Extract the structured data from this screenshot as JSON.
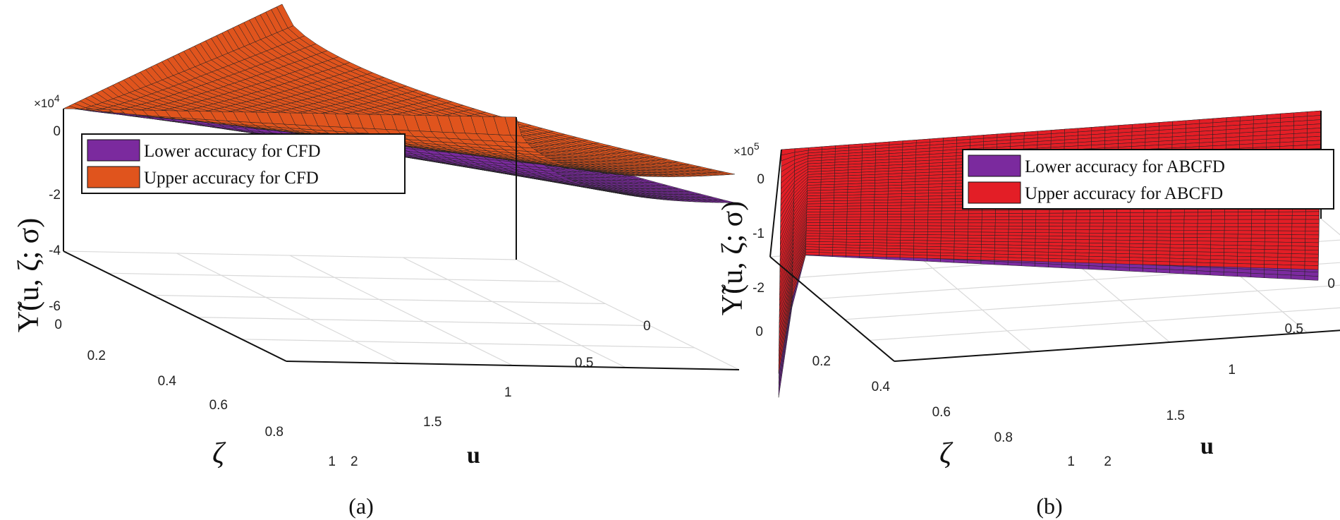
{
  "colors": {
    "lower": "#7B2A9E",
    "upper_a": "#E0541D",
    "upper_b": "#E31E26",
    "mesh": "#222222",
    "grid": "#d9d9d9"
  },
  "chart_data": [
    {
      "type": "surface",
      "panel_label": "(a)",
      "zlabel": "Υ̃(u, ζ; σ)",
      "xlabel": "u",
      "ylabel": "ζ",
      "exponent_label": "×10",
      "exponent_power": "4",
      "xlim": [
        0,
        2
      ],
      "ylim": [
        0,
        1
      ],
      "zlim": [
        -60000,
        0
      ],
      "xticks": [
        "0",
        "0.5",
        "1",
        "1.5",
        "2"
      ],
      "yticks": [
        "0",
        "0.2",
        "0.4",
        "0.6",
        "0.8",
        "1"
      ],
      "zticks": [
        "0",
        "-2",
        "-4",
        "-6"
      ],
      "legend_position": "top-left",
      "series": [
        {
          "name": "Lower accuracy for CFD",
          "z_min": -80000
        },
        {
          "name": "Upper accuracy for CFD",
          "z_min": -68000
        }
      ]
    },
    {
      "type": "surface",
      "panel_label": "(b)",
      "zlabel": "Υ̃(u, ζ; σ)",
      "xlabel": "u",
      "ylabel": "ζ",
      "exponent_label": "×10",
      "exponent_power": "5",
      "xlim": [
        0,
        2
      ],
      "ylim": [
        0,
        1
      ],
      "zlim": [
        -250000,
        0
      ],
      "xticks": [
        "0",
        "0.5",
        "1",
        "1.5",
        "2"
      ],
      "yticks": [
        "0",
        "0.2",
        "0.4",
        "0.6",
        "0.8",
        "1"
      ],
      "zticks": [
        "0",
        "-1",
        "-2"
      ],
      "legend_position": "top-right",
      "series": [
        {
          "name": "Lower accuracy for ABCFD",
          "z_min": -120000
        },
        {
          "name": "Upper accuracy for ABCFD",
          "z_min": -100000
        }
      ]
    }
  ]
}
